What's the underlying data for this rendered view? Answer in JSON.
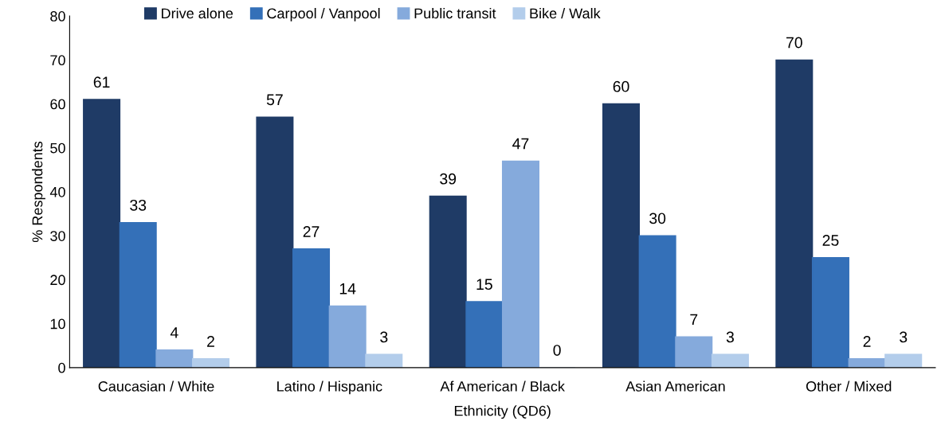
{
  "chart_data": {
    "type": "bar",
    "xlabel": "Ethnicity (QD6)",
    "ylabel": "% Respondents",
    "categories": [
      "Caucasian / White",
      "Latino / Hispanic",
      "Af American / Black",
      "Asian American",
      "Other / Mixed"
    ],
    "series": [
      {
        "name": "Drive alone",
        "color": "#1f3b66",
        "values": [
          61,
          57,
          39,
          60,
          70
        ]
      },
      {
        "name": "Carpool / Vanpool",
        "color": "#3470b8",
        "values": [
          33,
          27,
          15,
          30,
          25
        ]
      },
      {
        "name": "Public transit",
        "color": "#85aadc",
        "values": [
          4,
          14,
          47,
          7,
          2
        ]
      },
      {
        "name": "Bike / Walk",
        "color": "#b3cdeb",
        "values": [
          2,
          3,
          0,
          3,
          3
        ]
      }
    ],
    "ylim": [
      0,
      80
    ],
    "yticks": [
      0,
      10,
      20,
      30,
      40,
      50,
      60,
      70,
      80
    ],
    "data_labels": true,
    "grid": false,
    "legend": "top"
  }
}
